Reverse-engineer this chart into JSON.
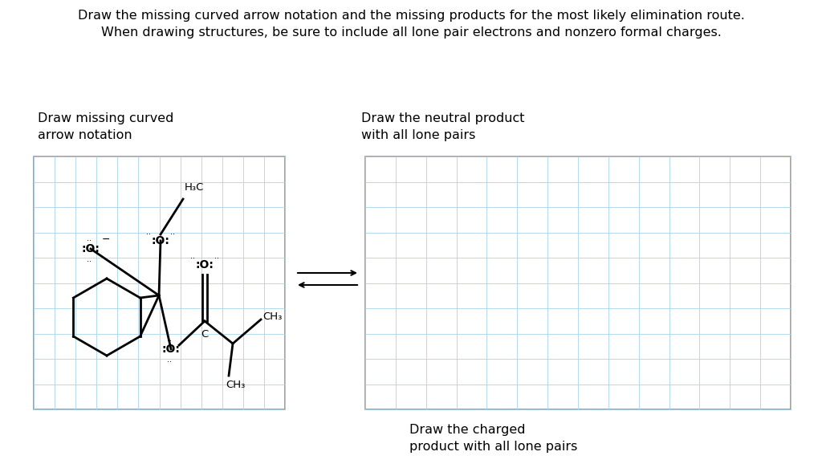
{
  "title_text": "Draw the missing curved arrow notation and the missing products for the most likely elimination route.\nWhen drawing structures, be sure to include all lone pair electrons and nonzero formal charges.",
  "label1": "Draw missing curved\narrow notation",
  "label2": "Draw the neutral product\nwith all lone pairs",
  "label3": "Draw the charged\nproduct with all lone pairs",
  "grid_color": "#a8d4ea",
  "grid_linewidth": 0.6,
  "background_color": "#ffffff",
  "text_color": "#000000",
  "title_fontsize": 11.5,
  "label_fontsize": 11.5,
  "mol_fontsize": 9.5
}
